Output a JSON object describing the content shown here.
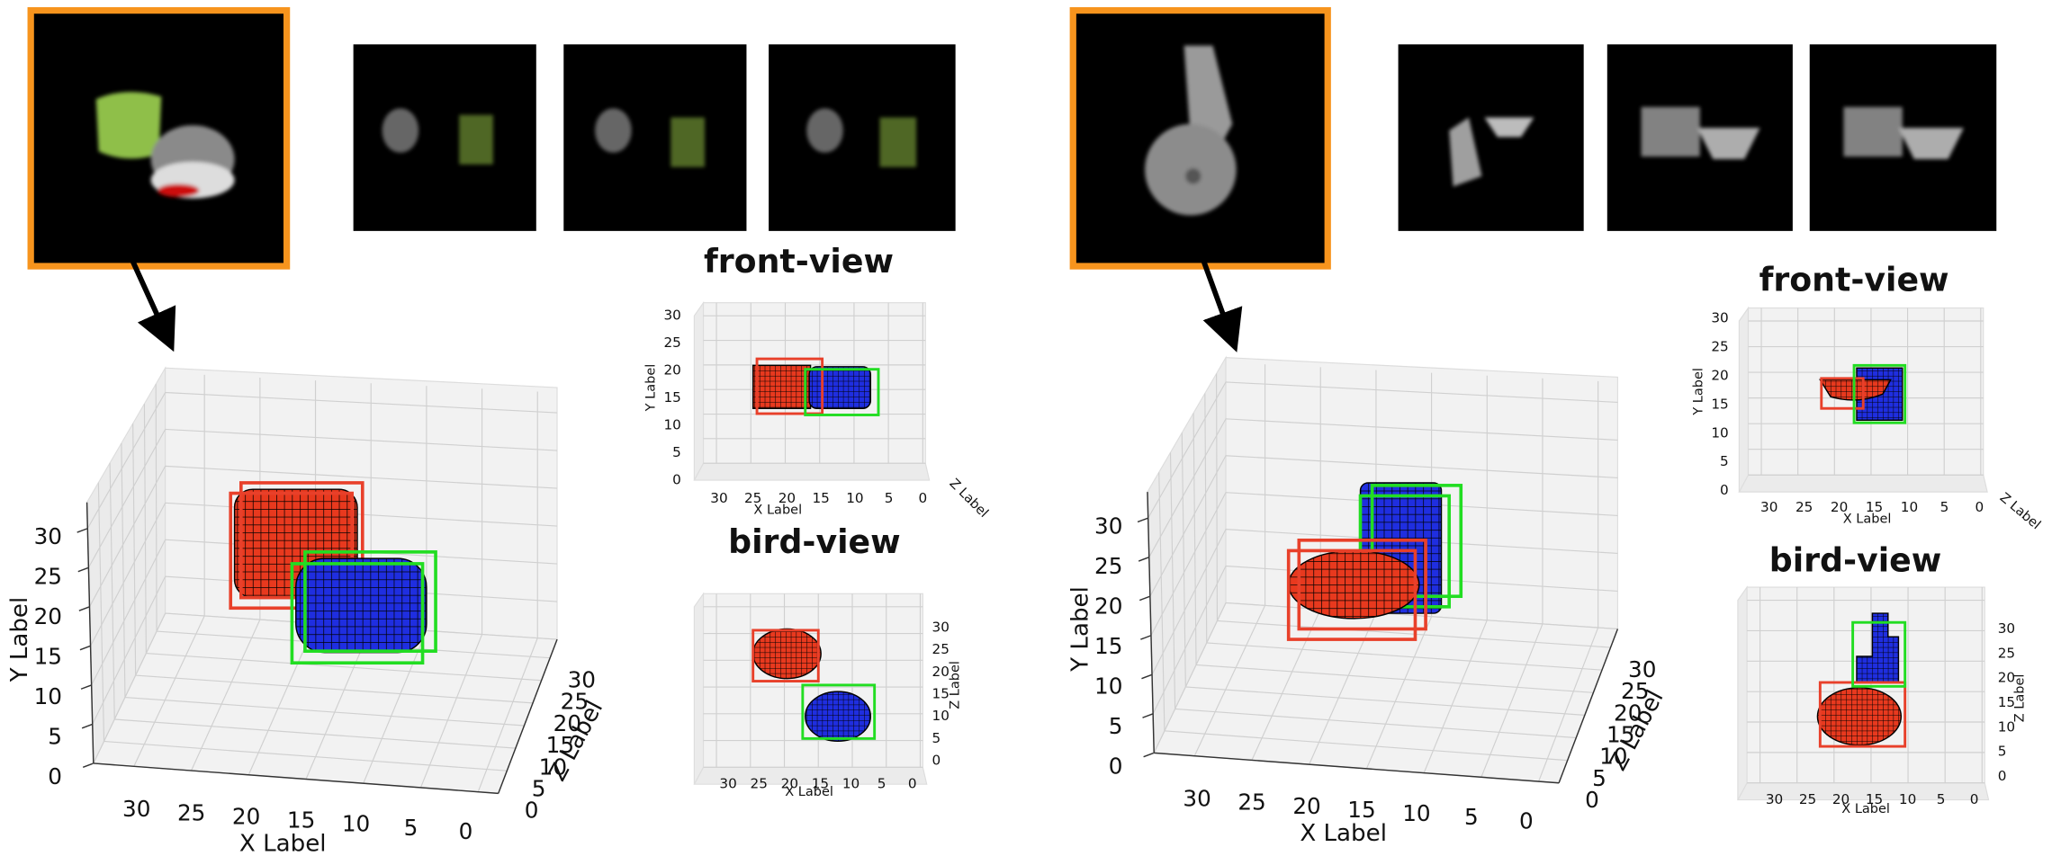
{
  "panels": [
    {
      "main_plot": {
        "x_label": "X Label",
        "y_label": "Y Label",
        "z_label": "Z Label",
        "x_ticks": [
          30,
          25,
          20,
          15,
          10,
          5,
          0
        ],
        "y_ticks": [
          0,
          5,
          10,
          15,
          20,
          25,
          30
        ],
        "z_ticks": [
          0,
          5,
          10,
          15,
          20,
          25,
          30
        ]
      },
      "front_view": {
        "title": "front-view",
        "x_label": "X Label",
        "y_label": "Y Label",
        "z_label": "Z Label",
        "x_ticks": [
          30,
          25,
          20,
          15,
          10,
          5,
          0
        ],
        "y_ticks": [
          0,
          5,
          10,
          15,
          20,
          25,
          30
        ]
      },
      "bird_view": {
        "title": "bird-view",
        "x_label": "X Label",
        "z_label": "Z Label",
        "x_ticks": [
          30,
          25,
          20,
          15,
          10,
          5,
          0
        ],
        "z_ticks": [
          0,
          5,
          10,
          15,
          20,
          25,
          30
        ]
      }
    },
    {
      "main_plot": {
        "x_label": "X Label",
        "y_label": "Y Label",
        "z_label": "Z Label",
        "x_ticks": [
          30,
          25,
          20,
          15,
          10,
          5,
          0
        ],
        "y_ticks": [
          0,
          5,
          10,
          15,
          20,
          25,
          30
        ],
        "z_ticks": [
          0,
          5,
          10,
          15,
          20,
          25,
          30
        ]
      },
      "front_view": {
        "title": "front-view",
        "x_label": "X Label",
        "y_label": "Y Label",
        "z_label": "Z Label",
        "x_ticks": [
          30,
          25,
          20,
          15,
          10,
          5,
          0
        ],
        "y_ticks": [
          0,
          5,
          10,
          15,
          20,
          25,
          30
        ]
      },
      "bird_view": {
        "title": "bird-view",
        "x_label": "X Label",
        "z_label": "Z Label",
        "x_ticks": [
          30,
          25,
          20,
          15,
          10,
          5,
          0
        ],
        "z_ticks": [
          0,
          5,
          10,
          15,
          20,
          25,
          30
        ]
      }
    }
  ]
}
